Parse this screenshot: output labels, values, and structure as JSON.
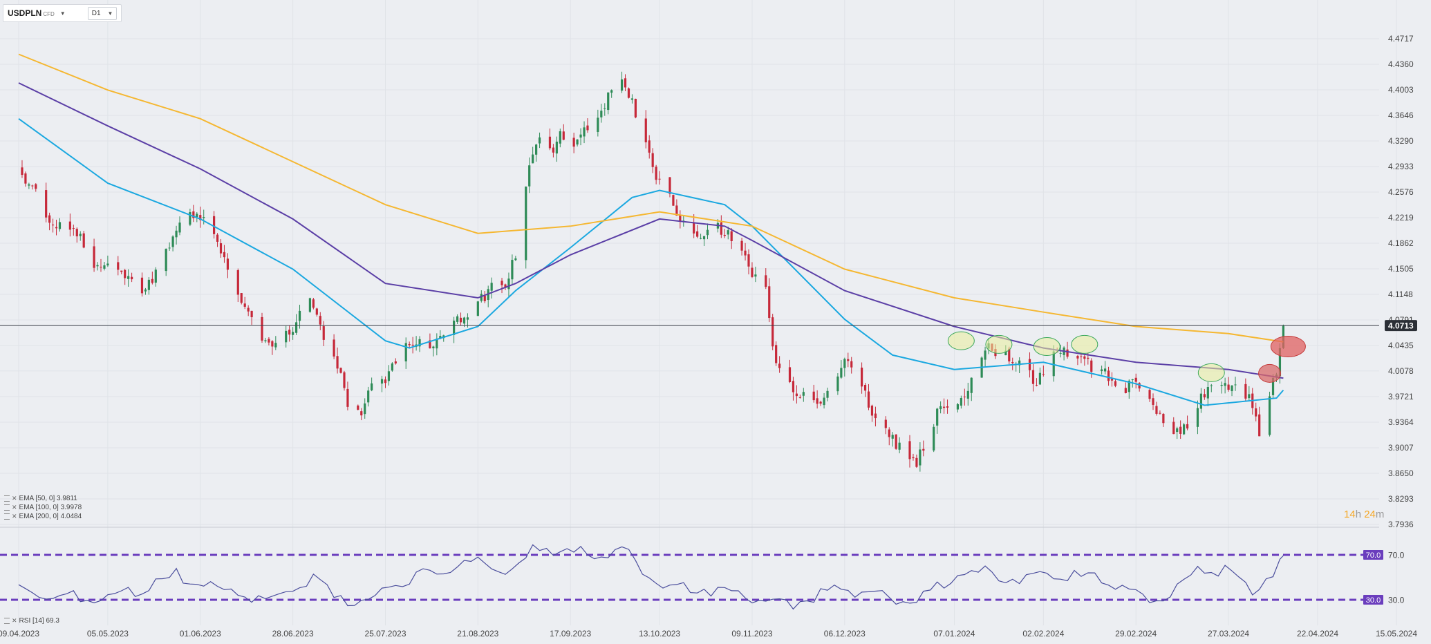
{
  "toolbar": {
    "symbol": "USDPLN",
    "instrument_type": "CFD",
    "timeframe": "D1",
    "symbol_caret_icon": "caret-down-icon",
    "timeframe_caret_icon": "caret-down-icon"
  },
  "legend": {
    "ema50": "EMA [50, 0] 3.9811",
    "ema100": "EMA [100, 0] 3.9978",
    "ema200": "EMA [200, 0] 4.0484",
    "rsi": "RSI [14] 69.3"
  },
  "timer": {
    "hours": "14",
    "h": "h",
    "minutes": "24",
    "m": "m"
  },
  "colors": {
    "background": "#eceef2",
    "bull": "#2e8b57",
    "bear": "#c62839",
    "ema50": "#1ba8e0",
    "ema100": "#5b3fa6",
    "ema200": "#f5b731",
    "rsi_line": "#4a4d9c",
    "rsi_levels": "#6a3dbd",
    "price_label_bg": "#2b2f36",
    "highlight_green": "#e9ef9a",
    "highlight_red": "#e06060"
  },
  "chart_data": [
    {
      "type": "candlestick",
      "title": "USDPLN",
      "ylim": [
        3.7936,
        4.4717
      ],
      "y_ticks": [
        "4.4717",
        "4.4360",
        "4.4003",
        "4.3646",
        "4.3290",
        "4.2933",
        "4.2576",
        "4.2219",
        "4.1862",
        "4.1505",
        "4.1148",
        "4.0791",
        "4.0435",
        "4.0078",
        "3.9721",
        "3.9364",
        "3.9007",
        "3.8650",
        "3.8293",
        "3.7936"
      ],
      "x_ticks": [
        "09.04.2023",
        "05.05.2023",
        "01.06.2023",
        "28.06.2023",
        "25.07.2023",
        "21.08.2023",
        "17.09.2023",
        "13.10.2023",
        "09.11.2023",
        "06.12.2023",
        "07.01.2024",
        "02.02.2024",
        "29.02.2024",
        "27.03.2024",
        "22.04.2024",
        "15.05.2024"
      ],
      "last_price": "4.0713",
      "close_anchors": [
        [
          "09.04.2023",
          4.29
        ],
        [
          "12.04.2023",
          4.27
        ],
        [
          "18.04.2023",
          4.22
        ],
        [
          "26.04.2023",
          4.2
        ],
        [
          "01.05.2023",
          4.16
        ],
        [
          "05.05.2023",
          4.15
        ],
        [
          "10.05.2023",
          4.14
        ],
        [
          "16.05.2023",
          4.12
        ],
        [
          "22.05.2023",
          4.17
        ],
        [
          "26.05.2023",
          4.22
        ],
        [
          "29.05.2023",
          4.23
        ],
        [
          "01.06.2023",
          4.22
        ],
        [
          "05.06.2023",
          4.2
        ],
        [
          "09.06.2023",
          4.15
        ],
        [
          "14.06.2023",
          4.1
        ],
        [
          "19.06.2023",
          4.05
        ],
        [
          "23.06.2023",
          4.04
        ],
        [
          "28.06.2023",
          4.07
        ],
        [
          "03.07.2023",
          4.11
        ],
        [
          "07.07.2023",
          4.06
        ],
        [
          "11.07.2023",
          4.02
        ],
        [
          "14.07.2023",
          3.96
        ],
        [
          "18.07.2023",
          3.95
        ],
        [
          "21.07.2023",
          3.99
        ],
        [
          "25.07.2023",
          4.0
        ],
        [
          "28.07.2023",
          4.02
        ],
        [
          "02.08.2023",
          4.05
        ],
        [
          "07.08.2023",
          4.04
        ],
        [
          "11.08.2023",
          4.06
        ],
        [
          "16.08.2023",
          4.08
        ],
        [
          "21.08.2023",
          4.1
        ],
        [
          "24.08.2023",
          4.12
        ],
        [
          "29.08.2023",
          4.13
        ],
        [
          "01.09.2023",
          4.17
        ],
        [
          "04.09.2023",
          4.27
        ],
        [
          "07.09.2023",
          4.33
        ],
        [
          "11.09.2023",
          4.31
        ],
        [
          "14.09.2023",
          4.34
        ],
        [
          "18.09.2023",
          4.33
        ],
        [
          "22.09.2023",
          4.35
        ],
        [
          "27.09.2023",
          4.38
        ],
        [
          "29.09.2023",
          4.4
        ],
        [
          "03.10.2023",
          4.41
        ],
        [
          "06.10.2023",
          4.37
        ],
        [
          "10.10.2023",
          4.31
        ],
        [
          "13.10.2023",
          4.27
        ],
        [
          "17.10.2023",
          4.24
        ],
        [
          "20.10.2023",
          4.21
        ],
        [
          "25.10.2023",
          4.2
        ],
        [
          "30.10.2023",
          4.21
        ],
        [
          "02.11.2023",
          4.2
        ],
        [
          "06.11.2023",
          4.18
        ],
        [
          "09.11.2023",
          4.14
        ],
        [
          "13.11.2023",
          4.12
        ],
        [
          "15.11.2023",
          4.04
        ],
        [
          "17.11.2023",
          4.01
        ],
        [
          "22.11.2023",
          3.98
        ],
        [
          "27.11.2023",
          3.96
        ],
        [
          "01.12.2023",
          3.98
        ],
        [
          "06.12.2023",
          4.02
        ],
        [
          "11.12.2023",
          3.99
        ],
        [
          "14.12.2023",
          3.94
        ],
        [
          "19.12.2023",
          3.92
        ],
        [
          "22.12.2023",
          3.9
        ],
        [
          "27.12.2023",
          3.88
        ],
        [
          "02.01.2024",
          3.95
        ],
        [
          "07.01.2024",
          3.96
        ],
        [
          "11.01.2024",
          3.98
        ],
        [
          "16.01.2024",
          4.04
        ],
        [
          "22.01.2024",
          4.03
        ],
        [
          "26.01.2024",
          4.02
        ],
        [
          "31.01.2024",
          3.99
        ],
        [
          "06.02.2024",
          4.04
        ],
        [
          "13.02.2024",
          4.02
        ],
        [
          "19.02.2024",
          4.01
        ],
        [
          "23.02.2024",
          3.98
        ],
        [
          "29.02.2024",
          3.99
        ],
        [
          "05.03.2024",
          3.96
        ],
        [
          "08.03.2024",
          3.93
        ],
        [
          "13.03.2024",
          3.92
        ],
        [
          "18.03.2024",
          3.96
        ],
        [
          "22.03.2024",
          3.99
        ],
        [
          "27.03.2024",
          3.99
        ],
        [
          "02.04.2024",
          3.97
        ],
        [
          "05.04.2024",
          3.92
        ],
        [
          "08.04.2024",
          3.97
        ],
        [
          "10.04.2024",
          4.01
        ],
        [
          "11.04.2024",
          4.04
        ],
        [
          "12.04.2024",
          4.07
        ]
      ],
      "series": [
        {
          "name": "EMA [50, 0]",
          "last": 3.9811,
          "points": [
            [
              "09.04.2023",
              4.36
            ],
            [
              "05.05.2023",
              4.27
            ],
            [
              "01.06.2023",
              4.22
            ],
            [
              "28.06.2023",
              4.15
            ],
            [
              "25.07.2023",
              4.05
            ],
            [
              "01.08.2023",
              4.04
            ],
            [
              "21.08.2023",
              4.07
            ],
            [
              "01.09.2023",
              4.12
            ],
            [
              "17.09.2023",
              4.18
            ],
            [
              "05.10.2023",
              4.25
            ],
            [
              "13.10.2023",
              4.26
            ],
            [
              "01.11.2023",
              4.24
            ],
            [
              "09.11.2023",
              4.21
            ],
            [
              "06.12.2023",
              4.08
            ],
            [
              "20.12.2023",
              4.03
            ],
            [
              "07.01.2024",
              4.01
            ],
            [
              "02.02.2024",
              4.02
            ],
            [
              "29.02.2024",
              3.99
            ],
            [
              "20.03.2024",
              3.96
            ],
            [
              "10.04.2024",
              3.97
            ],
            [
              "12.04.2024",
              3.9811
            ]
          ]
        },
        {
          "name": "EMA [100, 0]",
          "last": 3.9978,
          "points": [
            [
              "09.04.2023",
              4.41
            ],
            [
              "05.05.2023",
              4.35
            ],
            [
              "01.06.2023",
              4.29
            ],
            [
              "28.06.2023",
              4.22
            ],
            [
              "25.07.2023",
              4.13
            ],
            [
              "21.08.2023",
              4.11
            ],
            [
              "01.09.2023",
              4.13
            ],
            [
              "17.09.2023",
              4.17
            ],
            [
              "13.10.2023",
              4.22
            ],
            [
              "01.11.2023",
              4.21
            ],
            [
              "09.11.2023",
              4.19
            ],
            [
              "06.12.2023",
              4.12
            ],
            [
              "07.01.2024",
              4.07
            ],
            [
              "02.02.2024",
              4.04
            ],
            [
              "29.02.2024",
              4.02
            ],
            [
              "27.03.2024",
              4.01
            ],
            [
              "12.04.2024",
              3.9978
            ]
          ]
        },
        {
          "name": "EMA [200, 0]",
          "last": 4.0484,
          "points": [
            [
              "09.04.2023",
              4.45
            ],
            [
              "05.05.2023",
              4.4
            ],
            [
              "01.06.2023",
              4.36
            ],
            [
              "28.06.2023",
              4.3
            ],
            [
              "25.07.2023",
              4.24
            ],
            [
              "21.08.2023",
              4.2
            ],
            [
              "17.09.2023",
              4.21
            ],
            [
              "13.10.2023",
              4.23
            ],
            [
              "09.11.2023",
              4.21
            ],
            [
              "06.12.2023",
              4.15
            ],
            [
              "07.01.2024",
              4.11
            ],
            [
              "02.02.2024",
              4.09
            ],
            [
              "29.02.2024",
              4.07
            ],
            [
              "27.03.2024",
              4.06
            ],
            [
              "12.04.2024",
              4.0484
            ]
          ]
        }
      ]
    },
    {
      "type": "line",
      "title": "RSI [14]",
      "ylim": [
        20,
        80
      ],
      "levels": [
        "70.0",
        "30.0"
      ],
      "last": 69.3,
      "points": [
        [
          "09.04.2023",
          40
        ],
        [
          "20.04.2023",
          32
        ],
        [
          "05.05.2023",
          33
        ],
        [
          "15.05.2023",
          40
        ],
        [
          "25.05.2023",
          52
        ],
        [
          "01.06.2023",
          46
        ],
        [
          "10.06.2023",
          35
        ],
        [
          "20.06.2023",
          30
        ],
        [
          "28.06.2023",
          40
        ],
        [
          "05.07.2023",
          48
        ],
        [
          "14.07.2023",
          30
        ],
        [
          "20.07.2023",
          28
        ],
        [
          "25.07.2023",
          40
        ],
        [
          "05.08.2023",
          55
        ],
        [
          "21.08.2023",
          62
        ],
        [
          "01.09.2023",
          55
        ],
        [
          "07.09.2023",
          78
        ],
        [
          "17.09.2023",
          72
        ],
        [
          "03.10.2023",
          72
        ],
        [
          "13.10.2023",
          42
        ],
        [
          "25.10.2023",
          40
        ],
        [
          "02.11.2023",
          38
        ],
        [
          "09.11.2023",
          32
        ],
        [
          "15.11.2023",
          25
        ],
        [
          "22.11.2023",
          28
        ],
        [
          "06.12.2023",
          40
        ],
        [
          "14.12.2023",
          35
        ],
        [
          "22.12.2023",
          30
        ],
        [
          "27.12.2023",
          28
        ],
        [
          "07.01.2024",
          52
        ],
        [
          "16.01.2024",
          55
        ],
        [
          "26.01.2024",
          48
        ],
        [
          "02.02.2024",
          55
        ],
        [
          "13.02.2024",
          50
        ],
        [
          "22.02.2024",
          46
        ],
        [
          "29.02.2024",
          35
        ],
        [
          "08.03.2024",
          30
        ],
        [
          "18.03.2024",
          55
        ],
        [
          "27.03.2024",
          58
        ],
        [
          "03.04.2024",
          40
        ],
        [
          "08.04.2024",
          52
        ],
        [
          "12.04.2024",
          69.3
        ]
      ]
    }
  ]
}
